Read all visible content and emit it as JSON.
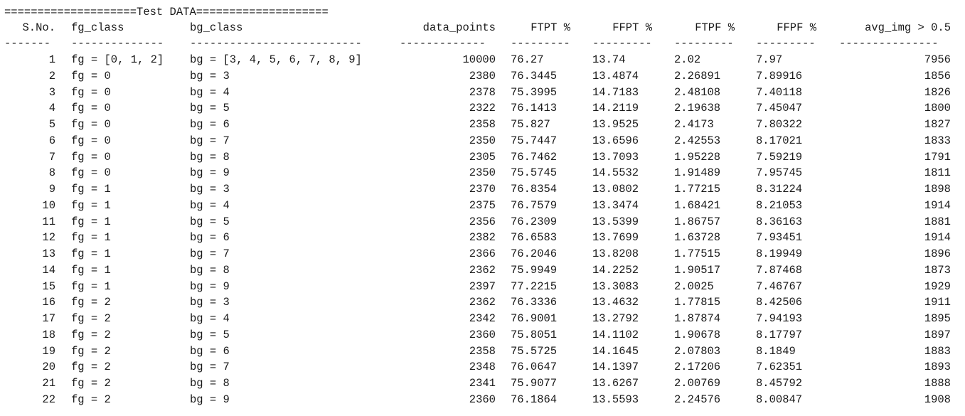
{
  "banner": "====================Test DATA====================",
  "headers": [
    "S.No.",
    "fg_class",
    "bg_class",
    "data_points",
    "FTPT %",
    "FFPT %",
    "FTPF %",
    "FFPF %",
    "avg_img > 0.5"
  ],
  "separators": [
    "-------",
    "--------------",
    "--------------------------",
    "-------------",
    "---------",
    "---------",
    "---------",
    "---------",
    "---------------"
  ],
  "rows": [
    [
      "1",
      "fg = [0, 1, 2]",
      "bg = [3, 4, 5, 6, 7, 8, 9]",
      "10000",
      "76.27",
      "13.74",
      "2.02",
      "7.97",
      "7956"
    ],
    [
      "2",
      "fg = 0",
      "bg = 3",
      "2380",
      "76.3445",
      "13.4874",
      "2.26891",
      "7.89916",
      "1856"
    ],
    [
      "3",
      "fg = 0",
      "bg = 4",
      "2378",
      "75.3995",
      "14.7183",
      "2.48108",
      "7.40118",
      "1826"
    ],
    [
      "4",
      "fg = 0",
      "bg = 5",
      "2322",
      "76.1413",
      "14.2119",
      "2.19638",
      "7.45047",
      "1800"
    ],
    [
      "5",
      "fg = 0",
      "bg = 6",
      "2358",
      "75.827",
      "13.9525",
      "2.4173",
      "7.80322",
      "1827"
    ],
    [
      "6",
      "fg = 0",
      "bg = 7",
      "2350",
      "75.7447",
      "13.6596",
      "2.42553",
      "8.17021",
      "1833"
    ],
    [
      "7",
      "fg = 0",
      "bg = 8",
      "2305",
      "76.7462",
      "13.7093",
      "1.95228",
      "7.59219",
      "1791"
    ],
    [
      "8",
      "fg = 0",
      "bg = 9",
      "2350",
      "75.5745",
      "14.5532",
      "1.91489",
      "7.95745",
      "1811"
    ],
    [
      "9",
      "fg = 1",
      "bg = 3",
      "2370",
      "76.8354",
      "13.0802",
      "1.77215",
      "8.31224",
      "1898"
    ],
    [
      "10",
      "fg = 1",
      "bg = 4",
      "2375",
      "76.7579",
      "13.3474",
      "1.68421",
      "8.21053",
      "1914"
    ],
    [
      "11",
      "fg = 1",
      "bg = 5",
      "2356",
      "76.2309",
      "13.5399",
      "1.86757",
      "8.36163",
      "1881"
    ],
    [
      "12",
      "fg = 1",
      "bg = 6",
      "2382",
      "76.6583",
      "13.7699",
      "1.63728",
      "7.93451",
      "1914"
    ],
    [
      "13",
      "fg = 1",
      "bg = 7",
      "2366",
      "76.2046",
      "13.8208",
      "1.77515",
      "8.19949",
      "1896"
    ],
    [
      "14",
      "fg = 1",
      "bg = 8",
      "2362",
      "75.9949",
      "14.2252",
      "1.90517",
      "7.87468",
      "1873"
    ],
    [
      "15",
      "fg = 1",
      "bg = 9",
      "2397",
      "77.2215",
      "13.3083",
      "2.0025",
      "7.46767",
      "1929"
    ],
    [
      "16",
      "fg = 2",
      "bg = 3",
      "2362",
      "76.3336",
      "13.4632",
      "1.77815",
      "8.42506",
      "1911"
    ],
    [
      "17",
      "fg = 2",
      "bg = 4",
      "2342",
      "76.9001",
      "13.2792",
      "1.87874",
      "7.94193",
      "1895"
    ],
    [
      "18",
      "fg = 2",
      "bg = 5",
      "2360",
      "75.8051",
      "14.1102",
      "1.90678",
      "8.17797",
      "1897"
    ],
    [
      "19",
      "fg = 2",
      "bg = 6",
      "2358",
      "75.5725",
      "14.1645",
      "2.07803",
      "8.1849",
      "1883"
    ],
    [
      "20",
      "fg = 2",
      "bg = 7",
      "2348",
      "76.0647",
      "14.1397",
      "2.17206",
      "7.62351",
      "1893"
    ],
    [
      "21",
      "fg = 2",
      "bg = 8",
      "2341",
      "75.9077",
      "13.6267",
      "2.00769",
      "8.45792",
      "1888"
    ],
    [
      "22",
      "fg = 2",
      "bg = 9",
      "2360",
      "76.1864",
      "13.5593",
      "2.24576",
      "8.00847",
      "1908"
    ]
  ]
}
